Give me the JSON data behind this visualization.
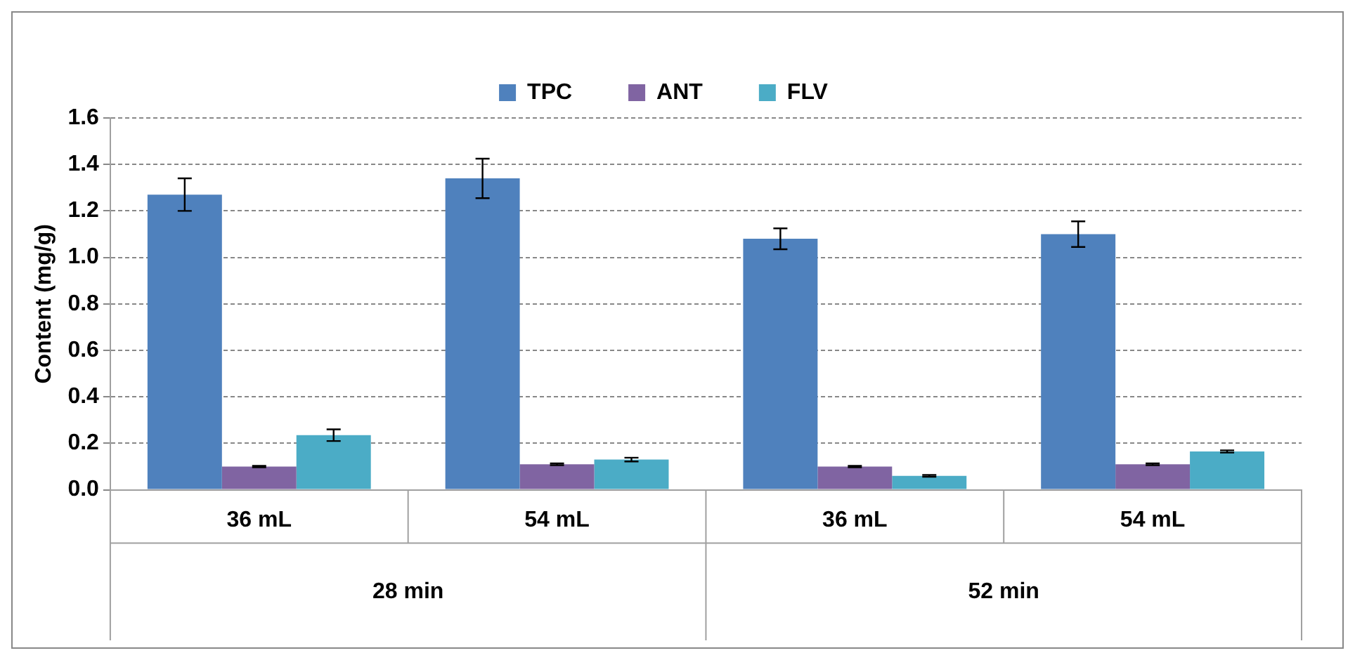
{
  "chart_data": {
    "type": "bar",
    "ylabel": "Content (mg/g)",
    "categories": [
      "36 mL",
      "54 mL",
      "36 mL",
      "54 mL"
    ],
    "annotations": [
      "28 min",
      "52 min"
    ],
    "series": [
      {
        "name": "TPC",
        "color": "#4f81bd",
        "values": [
          1.27,
          1.34,
          1.08,
          1.1
        ],
        "errors": [
          0.07,
          0.085,
          0.045,
          0.055
        ]
      },
      {
        "name": "ANT",
        "color": "#8064a2",
        "values": [
          0.1,
          0.11,
          0.1,
          0.11
        ],
        "errors": [
          0.003,
          0.004,
          0.003,
          0.004
        ]
      },
      {
        "name": "FLV",
        "color": "#4bacc6",
        "values": [
          0.235,
          0.13,
          0.06,
          0.165
        ],
        "errors": [
          0.025,
          0.008,
          0.004,
          0.005
        ]
      }
    ],
    "ylim": [
      0,
      1.6
    ],
    "yticks": [
      {
        "value": 0,
        "label": "0.0"
      },
      {
        "value": 0.2,
        "label": "0.2"
      },
      {
        "value": 0.4,
        "label": "0.4"
      },
      {
        "value": 0.6,
        "label": "0.6"
      },
      {
        "value": 0.8,
        "label": "0.8"
      },
      {
        "value": 1,
        "label": "1.0"
      },
      {
        "value": 1.2,
        "label": "1.2"
      },
      {
        "value": 1.4,
        "label": "1.4"
      },
      {
        "value": 1.6,
        "label": "1.6"
      }
    ],
    "grid": "y",
    "legend": "top"
  }
}
